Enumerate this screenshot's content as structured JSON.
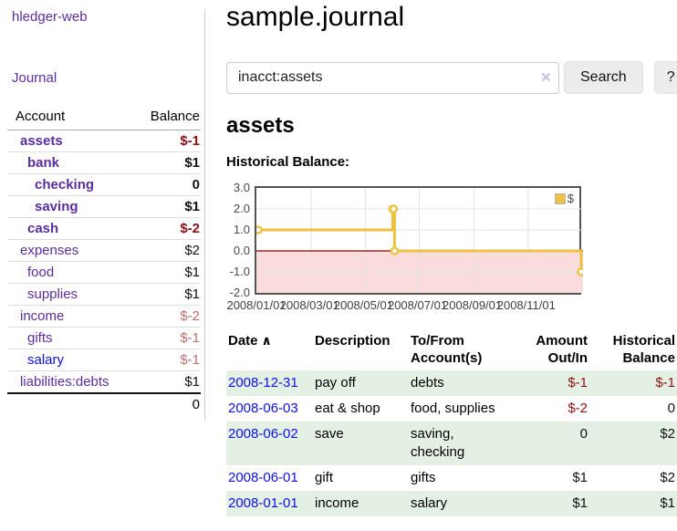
{
  "palette": {
    "link_purple": "#5b2da2",
    "link_blue": "#0f0fe0",
    "neg_strong": "#8b1212",
    "neg_soft": "#c26d6d",
    "text_black": "#111111",
    "series_yellow": "#edc240",
    "row_green": "#e4f0e4"
  },
  "sidebar": {
    "app_title": "hledger-web",
    "journal_label": "Journal",
    "table": {
      "account_header": "Account",
      "balance_header": "Balance",
      "accounts": [
        {
          "name": "assets",
          "depth": 1,
          "bold": true,
          "name_color": "#5b2da2",
          "balance": "$-1",
          "balance_color": "#8b1212"
        },
        {
          "name": "bank",
          "depth": 2,
          "bold": true,
          "name_color": "#5b2da2",
          "balance": "$1",
          "balance_color": "#111111"
        },
        {
          "name": "checking",
          "depth": 3,
          "bold": true,
          "name_color": "#5b2da2",
          "balance": "0",
          "balance_color": "#111111"
        },
        {
          "name": "saving",
          "depth": 3,
          "bold": true,
          "name_color": "#5b2da2",
          "balance": "$1",
          "balance_color": "#111111"
        },
        {
          "name": "cash",
          "depth": 2,
          "bold": true,
          "name_color": "#5b2da2",
          "balance": "$-2",
          "balance_color": "#8b1212"
        },
        {
          "name": "expenses",
          "depth": 1,
          "bold": false,
          "name_color": "#5b2da2",
          "balance": "$2",
          "balance_color": "#111111"
        },
        {
          "name": "food",
          "depth": 2,
          "bold": false,
          "name_color": "#5b2da2",
          "balance": "$1",
          "balance_color": "#111111"
        },
        {
          "name": "supplies",
          "depth": 2,
          "bold": false,
          "name_color": "#5b2da2",
          "balance": "$1",
          "balance_color": "#111111"
        },
        {
          "name": "income",
          "depth": 1,
          "bold": false,
          "name_color": "#5b2da2",
          "balance": "$-2",
          "balance_color": "#c26d6d"
        },
        {
          "name": "gifts",
          "depth": 2,
          "bold": false,
          "name_color": "#5b2da2",
          "balance": "$-1",
          "balance_color": "#c26d6d"
        },
        {
          "name": "salary",
          "depth": 2,
          "bold": false,
          "name_color": "#0f0fe0",
          "balance": "$-1",
          "balance_color": "#c26d6d"
        },
        {
          "name": "liabilities:debts",
          "depth": 1,
          "bold": false,
          "name_color": "#5b2da2",
          "balance": "$1",
          "balance_color": "#111111"
        }
      ],
      "total": "0"
    }
  },
  "main": {
    "title": "sample.journal",
    "search": {
      "value": "inacct:assets",
      "clear_icon": "×",
      "button_label": "Search",
      "help_label": "?"
    },
    "account_heading": "assets",
    "chart_label": "Historical Balance:"
  },
  "chart_data": {
    "type": "line",
    "step": true,
    "title": "Historical Balance",
    "series": [
      {
        "name": "$",
        "color": "#edc240",
        "points": [
          [
            "2008-01-01",
            1
          ],
          [
            "2008-06-01",
            2
          ],
          [
            "2008-06-02",
            2
          ],
          [
            "2008-06-03",
            0
          ],
          [
            "2008-12-31",
            -1
          ]
        ]
      }
    ],
    "ylim": [
      -2,
      3
    ],
    "yticks": [
      "3.0",
      "2.0",
      "1.0",
      "0.0",
      "-1.0",
      "-2.0"
    ],
    "xticks": [
      "2008/01/01",
      "2008/03/01",
      "2008/05/01",
      "2008/07/01",
      "2008/09/01",
      "2008/11/01"
    ],
    "x_range": [
      "2008-01-01",
      "2008-12-31"
    ],
    "grid": true,
    "legend": "$",
    "legend_position": "top-right",
    "negative_region_color": "#fadcdc",
    "zero_line_color": "#8b0000",
    "grid_color": "#e3e3e3"
  },
  "register": {
    "columns": {
      "date": "Date",
      "description": "Description",
      "accounts": "To/From Account(s)",
      "amount": "Amount Out/In",
      "balance": "Historical Balance"
    },
    "sort_icon": "∧",
    "rows": [
      {
        "date": "2008-12-31",
        "description": "pay off",
        "accounts": "debts",
        "amount": "$-1",
        "amount_color": "#8b1212",
        "balance": "$-1",
        "balance_color": "#8b1212"
      },
      {
        "date": "2008-06-03",
        "description": "eat & shop",
        "accounts": "food, supplies",
        "amount": "$-2",
        "amount_color": "#8b1212",
        "balance": "0",
        "balance_color": "#111111"
      },
      {
        "date": "2008-06-02",
        "description": "save",
        "accounts": "saving, checking",
        "amount": "0",
        "amount_color": "#111111",
        "balance": "$2",
        "balance_color": "#111111"
      },
      {
        "date": "2008-06-01",
        "description": "gift",
        "accounts": "gifts",
        "amount": "$1",
        "amount_color": "#111111",
        "balance": "$2",
        "balance_color": "#111111"
      },
      {
        "date": "2008-01-01",
        "description": "income",
        "accounts": "salary",
        "amount": "$1",
        "amount_color": "#111111",
        "balance": "$1",
        "balance_color": "#111111"
      }
    ]
  }
}
